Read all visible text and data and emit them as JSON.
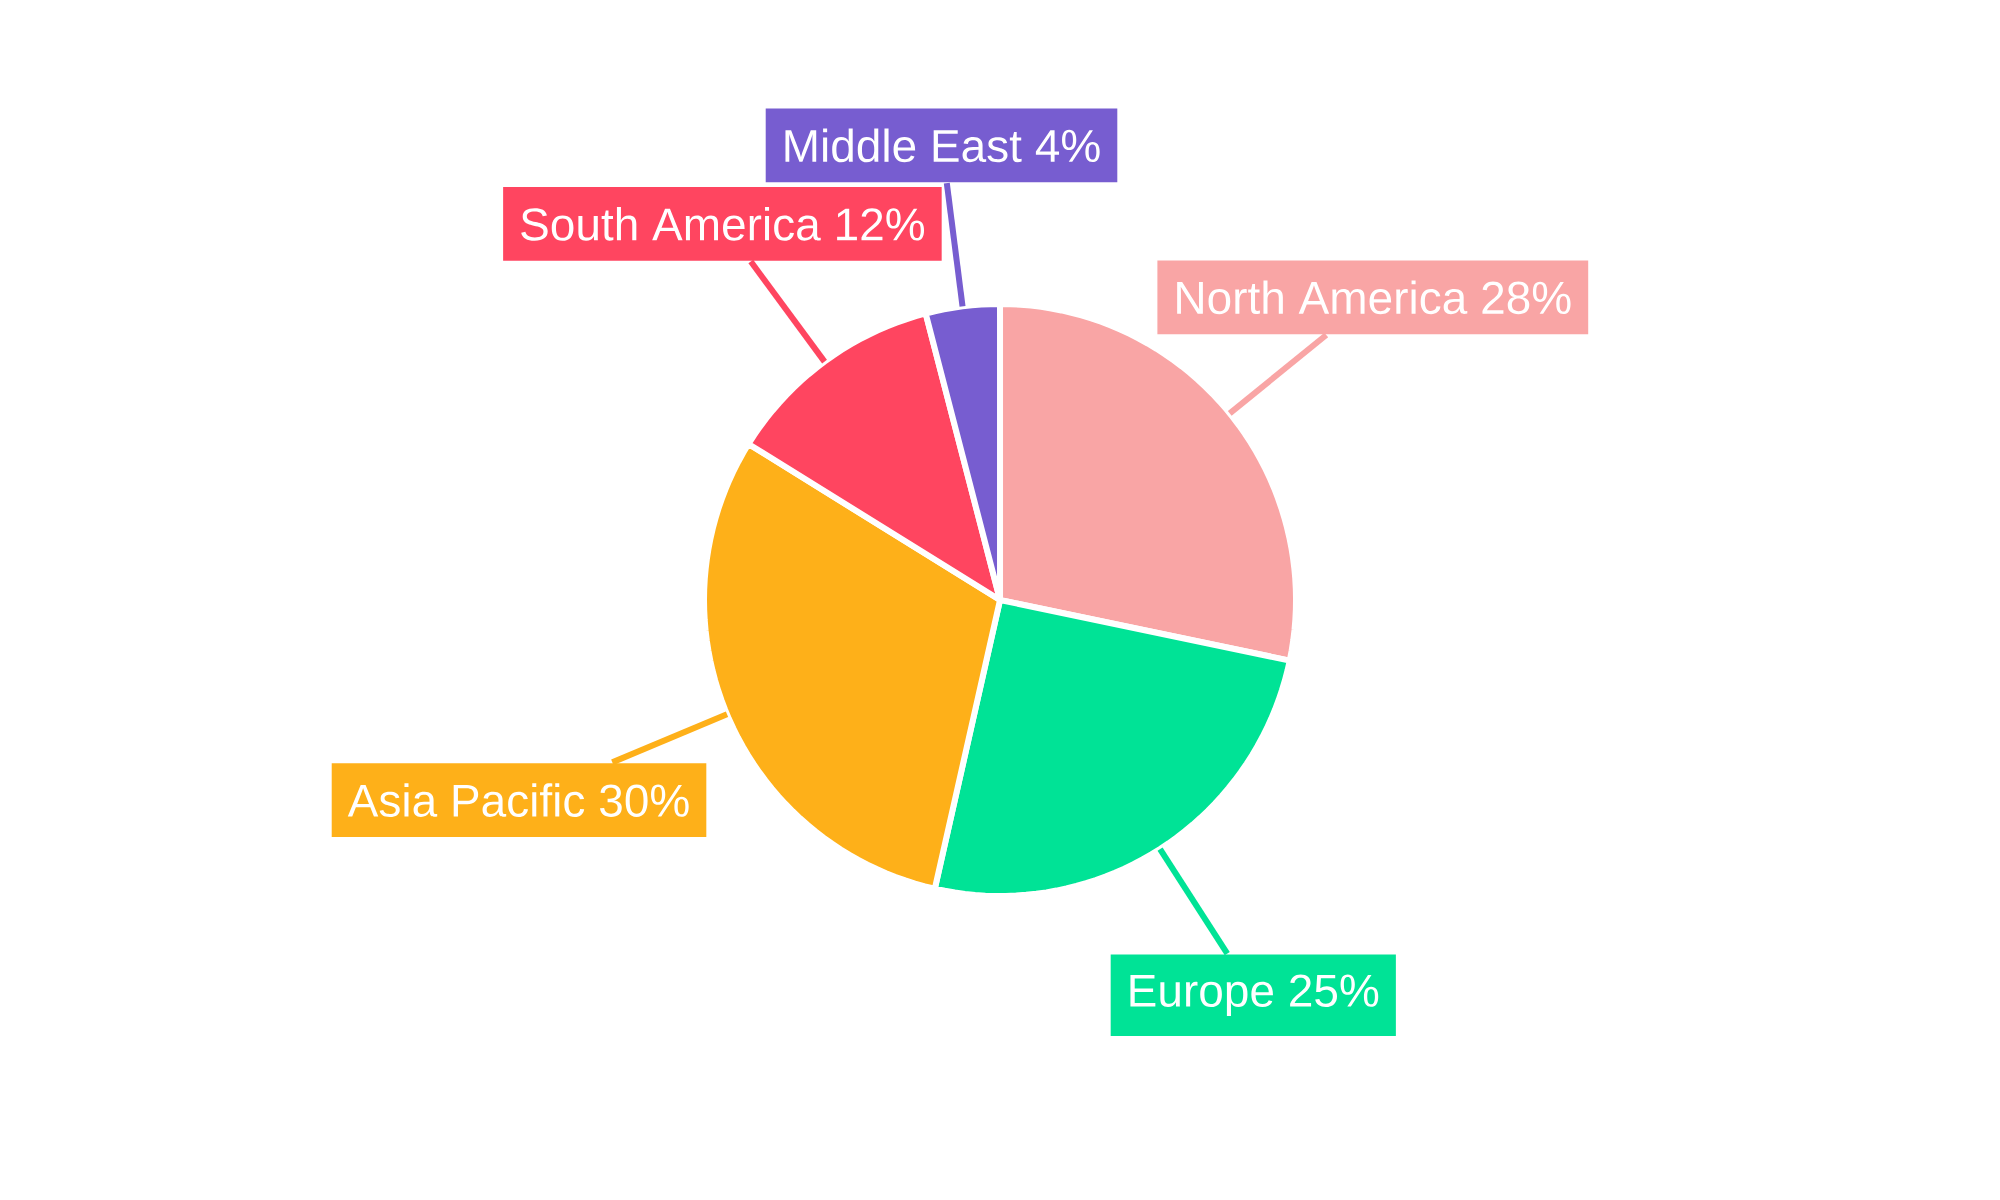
{
  "chart_data": {
    "type": "pie",
    "categories": [
      "North America",
      "Europe",
      "Asia Pacific",
      "South America",
      "Middle East"
    ],
    "values": [
      28,
      25,
      30,
      12,
      4
    ],
    "value_labels": [
      "28%",
      "25%",
      "30%",
      "12%",
      "4%"
    ],
    "colors": [
      "#f9a5a5",
      "#00e396",
      "#feb019",
      "#ff4560",
      "#775dd0"
    ]
  }
}
